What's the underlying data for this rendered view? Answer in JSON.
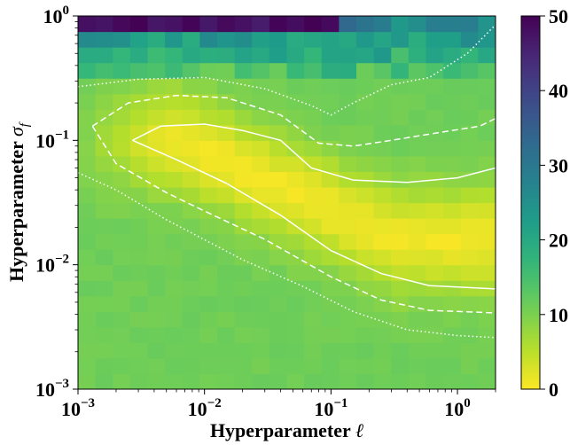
{
  "chart_data": {
    "type": "heatmap",
    "title": "",
    "xlabel": "Hyperparameter ℓ",
    "ylabel": "Hyperparameter σ_f",
    "x_scale": "log",
    "y_scale": "log",
    "xlim": [
      0.001,
      2.0
    ],
    "ylim": [
      0.001,
      1.0
    ],
    "x_ticks": [
      {
        "value": 0.001,
        "base": "10",
        "exp": "−3"
      },
      {
        "value": 0.01,
        "base": "10",
        "exp": "−2"
      },
      {
        "value": 0.1,
        "base": "10",
        "exp": "−1"
      },
      {
        "value": 1.0,
        "base": "10",
        "exp": "0"
      }
    ],
    "y_ticks": [
      {
        "value": 0.001,
        "base": "10",
        "exp": "−3"
      },
      {
        "value": 0.01,
        "base": "10",
        "exp": "−2"
      },
      {
        "value": 0.1,
        "base": "10",
        "exp": "−1"
      },
      {
        "value": 1.0,
        "base": "10",
        "exp": "0"
      }
    ],
    "colorbar": {
      "min": 0,
      "max": 50,
      "ticks": [
        "0",
        "10",
        "20",
        "30",
        "40",
        "50"
      ],
      "colormap": "viridis_r"
    },
    "grid": {
      "nx": 24,
      "ny": 24
    },
    "high_value_region": {
      "sigma_above": 0.6,
      "description_values": "values reach ~50 at sigma ≈ 1 for small ℓ, ~12–35 between σ 0.35 and 1"
    },
    "valley": {
      "min_value": 1,
      "background_value": 11
    },
    "contours": [
      {
        "style": "solid",
        "points": [
          [
            0.0027,
            0.1
          ],
          [
            0.0045,
            0.13
          ],
          [
            0.01,
            0.135
          ],
          [
            0.02,
            0.12
          ],
          [
            0.04,
            0.1
          ],
          [
            0.07,
            0.06
          ],
          [
            0.15,
            0.048
          ],
          [
            0.4,
            0.046
          ],
          [
            1.0,
            0.05
          ],
          [
            2.0,
            0.06
          ]
        ]
      },
      {
        "style": "solid",
        "points": [
          [
            0.0027,
            0.1
          ],
          [
            0.006,
            0.07
          ],
          [
            0.015,
            0.045
          ],
          [
            0.04,
            0.025
          ],
          [
            0.1,
            0.013
          ],
          [
            0.25,
            0.0085
          ],
          [
            0.6,
            0.0068
          ],
          [
            2.0,
            0.0064
          ]
        ]
      },
      {
        "style": "dashed",
        "points": [
          [
            0.0013,
            0.13
          ],
          [
            0.0025,
            0.2
          ],
          [
            0.006,
            0.23
          ],
          [
            0.015,
            0.22
          ],
          [
            0.04,
            0.16
          ],
          [
            0.08,
            0.095
          ],
          [
            0.15,
            0.09
          ],
          [
            0.3,
            0.1
          ],
          [
            0.7,
            0.115
          ],
          [
            1.5,
            0.13
          ],
          [
            2.0,
            0.15
          ]
        ]
      },
      {
        "style": "dashed",
        "points": [
          [
            0.0013,
            0.13
          ],
          [
            0.002,
            0.065
          ],
          [
            0.005,
            0.038
          ],
          [
            0.01,
            0.027
          ],
          [
            0.03,
            0.016
          ],
          [
            0.1,
            0.008
          ],
          [
            0.25,
            0.0052
          ],
          [
            0.6,
            0.0043
          ],
          [
            2.0,
            0.0041
          ]
        ]
      },
      {
        "style": "dotted",
        "points": [
          [
            0.001,
            0.27
          ],
          [
            0.003,
            0.31
          ],
          [
            0.01,
            0.32
          ],
          [
            0.03,
            0.26
          ],
          [
            0.07,
            0.19
          ],
          [
            0.1,
            0.16
          ],
          [
            0.15,
            0.2
          ],
          [
            0.3,
            0.28
          ],
          [
            0.6,
            0.32
          ],
          [
            1.2,
            0.5
          ],
          [
            2.0,
            0.85
          ]
        ]
      },
      {
        "style": "dotted",
        "points": [
          [
            0.001,
            0.055
          ],
          [
            0.002,
            0.04
          ],
          [
            0.005,
            0.023
          ],
          [
            0.02,
            0.011
          ],
          [
            0.06,
            0.0067
          ],
          [
            0.15,
            0.0042
          ],
          [
            0.4,
            0.003
          ],
          [
            1.0,
            0.0027
          ],
          [
            2.0,
            0.0026
          ]
        ]
      }
    ]
  }
}
